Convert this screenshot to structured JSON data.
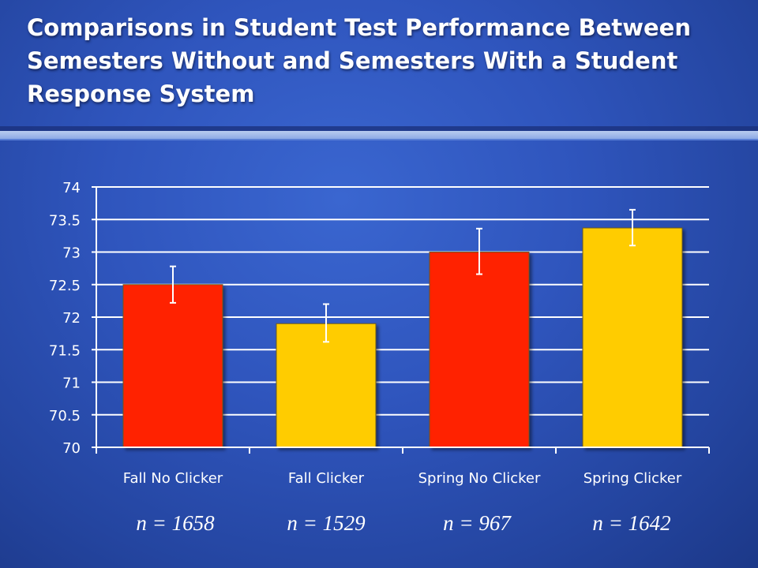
{
  "title": "Comparisons in Student Test Performance Between Semesters Without and Semesters With a Student Response System",
  "chart_data": {
    "type": "bar",
    "title": "",
    "xlabel": "",
    "ylabel": "",
    "ylim": [
      70,
      74
    ],
    "yticks": [
      "70",
      "70.5",
      "71",
      "71.5",
      "72",
      "72.5",
      "73",
      "73.5",
      "74"
    ],
    "grid": true,
    "categories": [
      "Fall No Clicker",
      "Fall Clicker",
      "Spring No Clicker",
      "Spring Clicker"
    ],
    "values": [
      72.5,
      71.9,
      73.0,
      73.37
    ],
    "error_low": [
      72.22,
      71.62,
      72.66,
      73.1
    ],
    "error_high": [
      72.78,
      72.2,
      73.36,
      73.65
    ],
    "colors": [
      "#ff2200",
      "#ffcc00",
      "#ff2200",
      "#ffcc00"
    ]
  },
  "sample_sizes": [
    "n = 1658",
    "n = 1529",
    "n = 967",
    "n = 1642"
  ]
}
